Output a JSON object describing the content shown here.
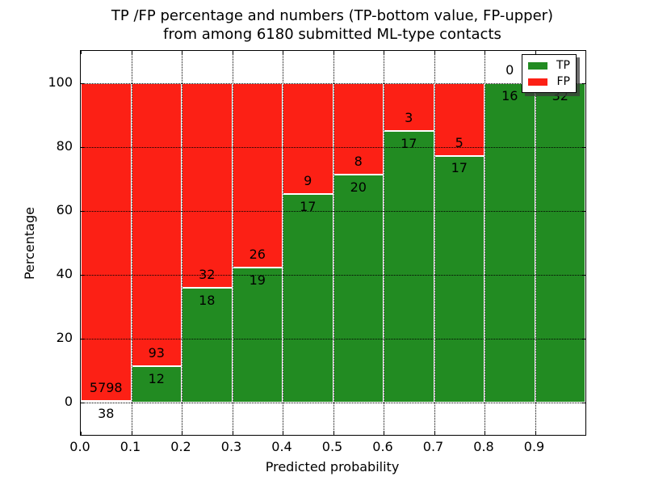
{
  "title": {
    "line1": "TP /FP percentage and numbers (TP-bottom value, FP-upper)",
    "line2": "from among 6180 submitted ML-type contacts"
  },
  "chart_data": {
    "type": "bar",
    "stacked": true,
    "normalized_to_percent": true,
    "title": "TP /FP percentage and numbers (TP-bottom value, FP-upper) from among 6180 submitted ML-type contacts",
    "xlabel": "Predicted probability",
    "ylabel": "Percentage",
    "xlim": [
      0.0,
      1.0
    ],
    "ylim": [
      -10,
      110
    ],
    "grid": true,
    "bin_width": 0.1,
    "bin_starts": [
      0.0,
      0.1,
      0.2,
      0.3,
      0.4,
      0.5,
      0.6,
      0.7,
      0.8,
      0.9
    ],
    "x_tick_labels": [
      "0.0",
      "0.1",
      "0.2",
      "0.3",
      "0.4",
      "0.5",
      "0.6",
      "0.7",
      "0.8",
      "0.9"
    ],
    "y_tick_values": [
      0,
      20,
      40,
      60,
      80,
      100
    ],
    "y_tick_labels": [
      "0",
      "20",
      "40",
      "60",
      "80",
      "100"
    ],
    "series": [
      {
        "name": "TP",
        "color": "#228b22",
        "counts": [
          38,
          12,
          18,
          19,
          17,
          20,
          17,
          17,
          16,
          32
        ]
      },
      {
        "name": "FP",
        "color": "#fc2015",
        "counts": [
          5798,
          93,
          32,
          26,
          9,
          8,
          3,
          5,
          0,
          0
        ]
      }
    ],
    "tp_percent_heights": [
      0.65,
      11.43,
      36.0,
      42.22,
      65.38,
      71.43,
      85.0,
      77.27,
      100.0,
      100.0
    ],
    "total_contacts": 6180,
    "legend": {
      "position": "upper right",
      "entries": [
        {
          "label": "TP",
          "color": "#228b22"
        },
        {
          "label": "FP",
          "color": "#fc2015"
        }
      ]
    }
  },
  "colors": {
    "background": "#ffffff",
    "frame": "#000000",
    "grid": "#000000",
    "text": "#000000"
  }
}
